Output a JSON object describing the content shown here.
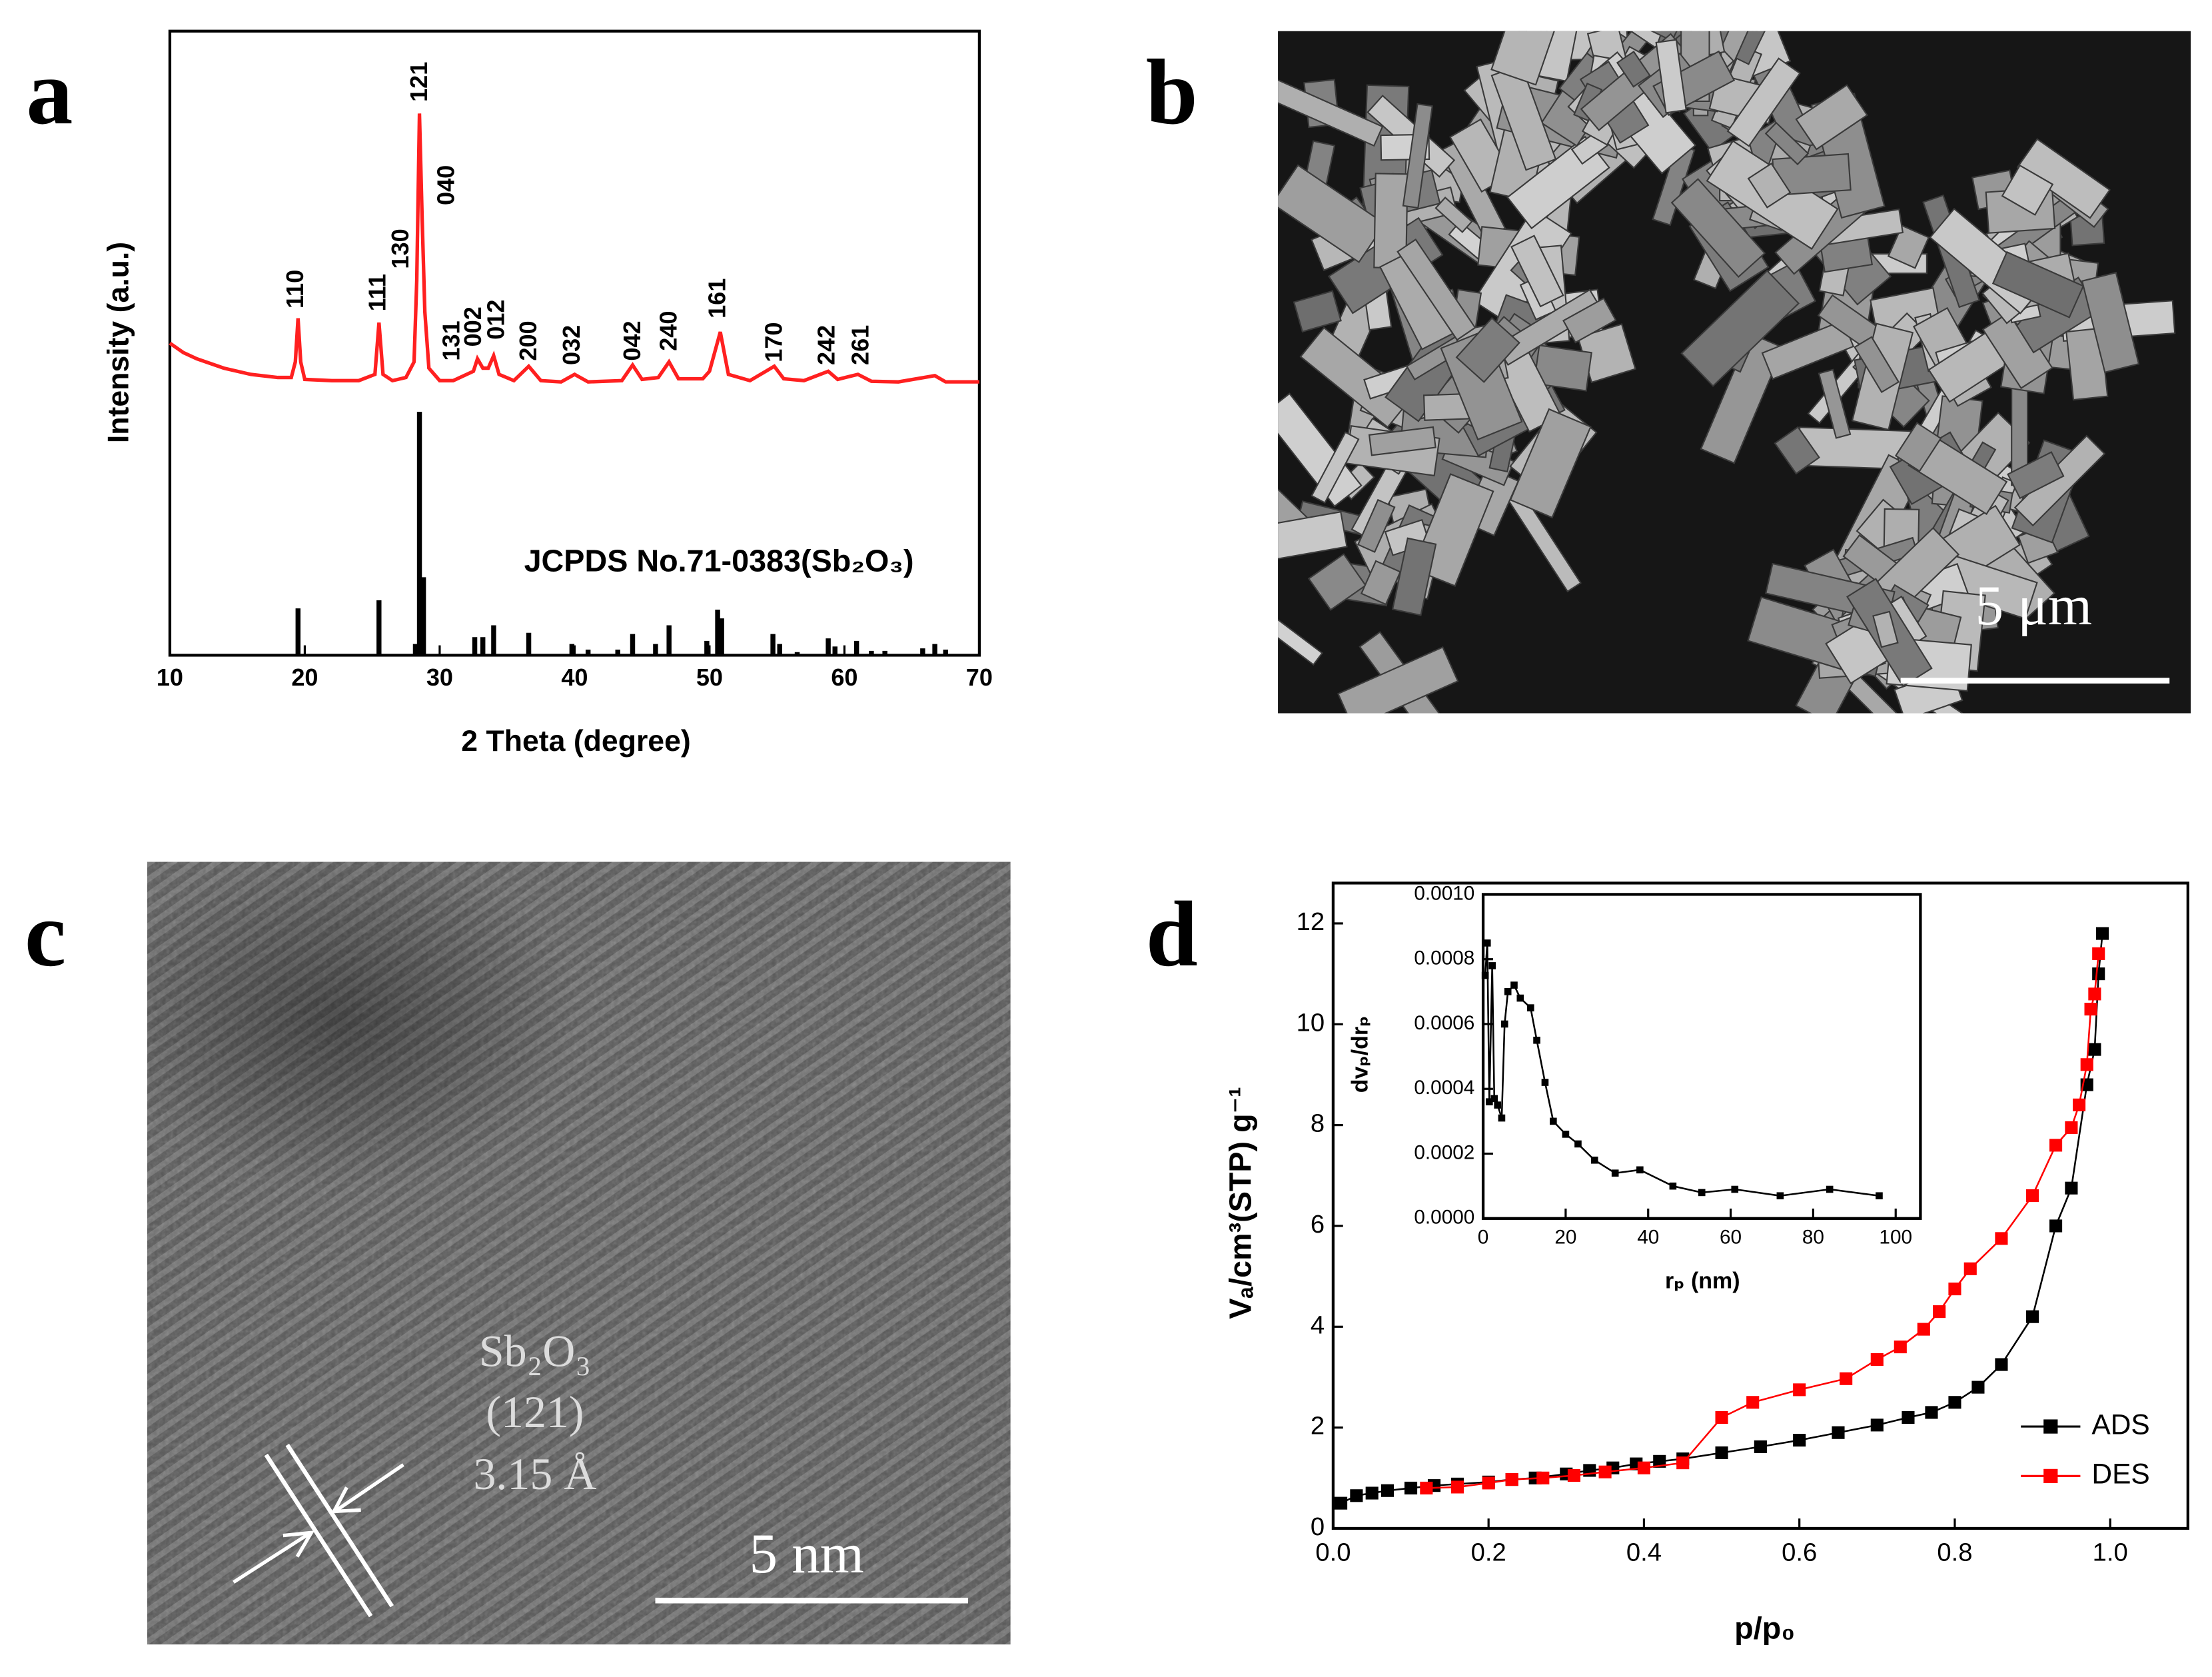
{
  "chart_data": [
    {
      "type": "line",
      "panel_label": "a",
      "xlabel": "2 Theta (degree)",
      "ylabel": "Intensity (a.u.)",
      "xlim": [
        10,
        70
      ],
      "xticks": [
        10,
        20,
        30,
        40,
        50,
        60,
        70
      ],
      "ylim": [
        0,
        100
      ],
      "series": [
        {
          "color": "#ff2020",
          "x": [
            10,
            11,
            12,
            14,
            16,
            18,
            19,
            19.3,
            19.5,
            19.7,
            20,
            22,
            24,
            25.2,
            25.5,
            25.8,
            26.5,
            27.5,
            28.1,
            28.3,
            28.5,
            28.7,
            28.9,
            29.2,
            30,
            31,
            32.5,
            32.8,
            33.2,
            33.6,
            34,
            34.4,
            35.5,
            36.6,
            37.5,
            39,
            40,
            41,
            43.5,
            44.3,
            45,
            46.2,
            47,
            47.7,
            49.5,
            50,
            50.8,
            51.4,
            53,
            54.8,
            55.5,
            57,
            58.8,
            59.5,
            61,
            62,
            64,
            66.7,
            67.5,
            70
          ],
          "values": [
            50,
            48.5,
            47.5,
            46,
            45,
            44.5,
            44.5,
            47,
            54,
            47,
            44.2,
            44,
            44,
            45,
            53.3,
            45,
            44,
            44.5,
            47,
            60,
            86.8,
            70,
            55,
            46,
            44,
            44,
            45.5,
            47.5,
            46,
            46,
            48,
            45,
            44,
            46.3,
            44,
            43.8,
            45,
            43.8,
            44,
            46.5,
            44.2,
            44.5,
            47,
            44.3,
            44.3,
            45.5,
            51.8,
            45,
            44,
            46.3,
            44.3,
            44,
            45.5,
            44.2,
            45,
            43.9,
            43.8,
            44.8,
            43.8,
            43.8
          ]
        },
        {
          "name": "JCPDS No.71-0383(Sb₂O₃)",
          "color": "#000000",
          "style": "stick",
          "x": [
            19.5,
            25.5,
            28.2,
            28.5,
            28.8,
            32.6,
            33.2,
            34,
            36.6,
            39.8,
            41,
            43.2,
            44.3,
            46,
            47,
            49.8,
            50.6,
            50.9,
            54.7,
            55.2,
            56.5,
            58.8,
            59.3,
            60.9,
            62,
            63,
            65.8,
            66.7,
            67.5
          ],
          "values": [
            7.5,
            8.8,
            1.8,
            39,
            12.5,
            2.9,
            2.9,
            4.8,
            3.6,
            1.8,
            0.9,
            0.9,
            3.4,
            1.8,
            4.8,
            2.3,
            7.3,
            5.9,
            3.4,
            1.8,
            0.5,
            2.7,
            1.4,
            2.3,
            0.7,
            0.7,
            1.1,
            1.8,
            0.9
          ]
        }
      ],
      "peak_labels": [
        {
          "text": "110",
          "x": 19.4
        },
        {
          "text": "111",
          "x": 25.5
        },
        {
          "text": "130",
          "x": 27.2
        },
        {
          "text": "121",
          "x": 28.6
        },
        {
          "text": "040",
          "x": 30.6
        },
        {
          "text": "131",
          "x": 31
        },
        {
          "text": "002",
          "x": 32.6
        },
        {
          "text": "012",
          "x": 34.3
        },
        {
          "text": "200",
          "x": 36.7
        },
        {
          "text": "032",
          "x": 39.9
        },
        {
          "text": "042",
          "x": 44.4
        },
        {
          "text": "240",
          "x": 47.1
        },
        {
          "text": "161",
          "x": 50.7
        },
        {
          "text": "170",
          "x": 54.9
        },
        {
          "text": "242",
          "x": 58.8
        },
        {
          "text": "261",
          "x": 61.3
        }
      ]
    },
    {
      "type": "line",
      "panel_label": "d",
      "xlabel": "p/p₀",
      "ylabel": "Vₐ/cm³(STP) g⁻¹",
      "xlim": [
        0,
        1.1
      ],
      "ylim": [
        0,
        12.8
      ],
      "xticks": [
        {
          "value": 0,
          "label": "0.0"
        },
        {
          "value": 0.2,
          "label": "0.2"
        },
        {
          "value": 0.4,
          "label": "0.4"
        },
        {
          "value": 0.6,
          "label": "0.6"
        },
        {
          "value": 0.8,
          "label": "0.8"
        },
        {
          "value": 1,
          "label": "1.0"
        }
      ],
      "yticks": [
        0,
        2,
        4,
        6,
        8,
        10,
        12
      ],
      "legend": "lower right",
      "series": [
        {
          "name": "ADS",
          "color": "#000000",
          "marker": "square",
          "x": [
            0.01,
            0.03,
            0.05,
            0.07,
            0.1,
            0.13,
            0.16,
            0.2,
            0.23,
            0.26,
            0.3,
            0.33,
            0.36,
            0.39,
            0.42,
            0.45,
            0.5,
            0.55,
            0.6,
            0.65,
            0.7,
            0.74,
            0.77,
            0.8,
            0.83,
            0.86,
            0.9,
            0.93,
            0.95,
            0.97,
            0.98,
            0.985,
            0.99
          ],
          "values": [
            0.5,
            0.65,
            0.7,
            0.75,
            0.8,
            0.85,
            0.88,
            0.92,
            0.97,
            1.0,
            1.08,
            1.15,
            1.2,
            1.28,
            1.33,
            1.38,
            1.5,
            1.62,
            1.75,
            1.9,
            2.05,
            2.2,
            2.3,
            2.5,
            2.8,
            3.25,
            4.2,
            6.0,
            6.75,
            8.8,
            9.5,
            11.0,
            11.8
          ]
        },
        {
          "name": "DES",
          "color": "#ff0000",
          "marker": "square",
          "x": [
            0.12,
            0.16,
            0.2,
            0.23,
            0.27,
            0.31,
            0.35,
            0.4,
            0.45,
            0.5,
            0.54,
            0.6,
            0.66,
            0.7,
            0.73,
            0.76,
            0.78,
            0.8,
            0.82,
            0.86,
            0.9,
            0.93,
            0.95,
            0.96,
            0.97,
            0.975,
            0.98,
            0.985
          ],
          "values": [
            0.8,
            0.82,
            0.9,
            0.97,
            1.0,
            1.05,
            1.12,
            1.2,
            1.3,
            2.2,
            2.5,
            2.75,
            2.97,
            3.35,
            3.6,
            3.95,
            4.3,
            4.75,
            5.15,
            5.75,
            6.6,
            7.6,
            7.95,
            8.4,
            9.2,
            10.3,
            10.6,
            11.4
          ]
        }
      ]
    },
    {
      "type": "line",
      "xlabel": "rₚ (nm)",
      "ylabel": "dvₚ/drₚ",
      "xlim": [
        0,
        106
      ],
      "ylim": [
        0,
        0.001
      ],
      "xticks": [
        0,
        20,
        40,
        60,
        80,
        100
      ],
      "yticks": [
        {
          "value": 0,
          "label": "0.0000"
        },
        {
          "value": 0.0002,
          "label": "0.0002"
        },
        {
          "value": 0.0004,
          "label": "0.0004"
        },
        {
          "value": 0.0006,
          "label": "0.0006"
        },
        {
          "value": 0.0008,
          "label": "0.0008"
        },
        {
          "value": 0.001,
          "label": "0.0010"
        }
      ],
      "series": [
        {
          "color": "#000000",
          "marker": "square",
          "x": [
            0.5,
            1,
            1.5,
            2.2,
            2.7,
            3.5,
            4.5,
            5.2,
            6,
            7.5,
            9,
            11.5,
            13,
            15,
            17,
            20,
            23,
            27,
            32,
            38,
            46,
            53,
            61,
            72,
            84,
            96
          ],
          "values": [
            0.00075,
            0.00085,
            0.00036,
            0.00078,
            0.00037,
            0.00035,
            0.00031,
            0.0006,
            0.0007,
            0.00072,
            0.00068,
            0.00065,
            0.00055,
            0.00042,
            0.0003,
            0.00026,
            0.00023,
            0.00018,
            0.00014,
            0.00015,
            0.0001,
            8e-05,
            9e-05,
            7e-05,
            9e-05,
            7e-05
          ]
        }
      ]
    }
  ],
  "images": [
    {
      "panel_label": "b",
      "scale_bar": "5 μm"
    },
    {
      "panel_label": "c",
      "scale_bar": "5 nm",
      "annotation": [
        "Sb₂O₃",
        "(121)",
        "3.15 Å"
      ]
    }
  ]
}
